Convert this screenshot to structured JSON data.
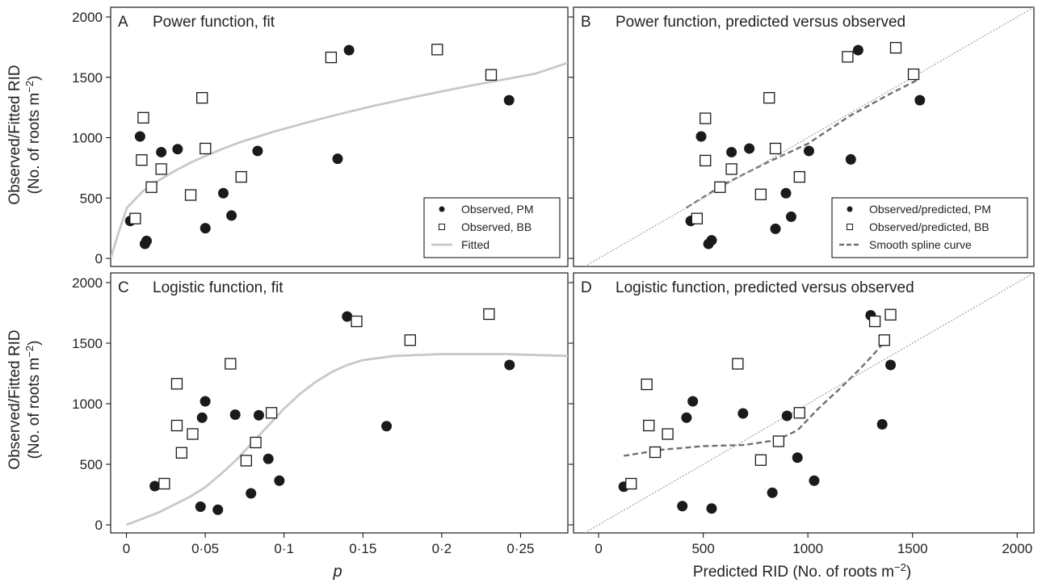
{
  "figure": {
    "y_axis_label_line1": "Observed/Fitted RID",
    "y_axis_label_line2": "(No. of roots m",
    "y_axis_label_exp": "−2",
    "y_axis_label_close": ")",
    "x_left_label": "p",
    "x_right_label": "Predicted RID (No. of roots m",
    "x_right_label_exp": "−2",
    "x_right_label_close": ")"
  },
  "colors": {
    "filled_marker": "#1a1a1a",
    "fitted_line": "#c8c8c8",
    "spline_line": "#707070",
    "identity_line": "#a8a8a8"
  },
  "chart_data": [
    {
      "panel": "A",
      "title": "Power function, fit",
      "type": "scatter",
      "xlim": [
        0,
        0.28
      ],
      "ylim": [
        0,
        2000
      ],
      "xticks": [
        {
          "v": 0,
          "label": "0"
        },
        {
          "v": 0.05,
          "label": "0·05"
        },
        {
          "v": 0.1,
          "label": "0·1"
        },
        {
          "v": 0.15,
          "label": "0·15"
        },
        {
          "v": 0.2,
          "label": "0·2"
        },
        {
          "v": 0.25,
          "label": "0·25"
        }
      ],
      "yticks": [
        {
          "v": 0,
          "label": "0"
        },
        {
          "v": 500,
          "label": "500"
        },
        {
          "v": 1000,
          "label": "1000"
        },
        {
          "v": 1500,
          "label": "1500"
        },
        {
          "v": 2000,
          "label": "2000"
        }
      ],
      "legend_position": "bottom-right",
      "series": [
        {
          "name": "Observed, PM",
          "marker": "filled-circle",
          "points": [
            [
              0.012,
              310
            ],
            [
              0.018,
              1010
            ],
            [
              0.021,
              120
            ],
            [
              0.022,
              145
            ],
            [
              0.031,
              880
            ],
            [
              0.041,
              905
            ],
            [
              0.058,
              250
            ],
            [
              0.069,
              540
            ],
            [
              0.074,
              355
            ],
            [
              0.09,
              890
            ],
            [
              0.139,
              825
            ],
            [
              0.146,
              1725
            ],
            [
              0.244,
              1310
            ]
          ]
        },
        {
          "name": "Observed, BB",
          "marker": "open-square",
          "points": [
            [
              0.015,
              330
            ],
            [
              0.019,
              815
            ],
            [
              0.02,
              1165
            ],
            [
              0.025,
              590
            ],
            [
              0.031,
              740
            ],
            [
              0.049,
              525
            ],
            [
              0.056,
              1330
            ],
            [
              0.058,
              910
            ],
            [
              0.08,
              675
            ],
            [
              0.135,
              1665
            ],
            [
              0.2,
              1730
            ],
            [
              0.233,
              1520
            ]
          ]
        },
        {
          "name": "Fitted",
          "marker": "line",
          "points": [
            [
              0,
              0
            ],
            [
              0.005,
              220
            ],
            [
              0.01,
              420
            ],
            [
              0.02,
              560
            ],
            [
              0.03,
              650
            ],
            [
              0.04,
              730
            ],
            [
              0.05,
              800
            ],
            [
              0.06,
              860
            ],
            [
              0.07,
              915
            ],
            [
              0.08,
              965
            ],
            [
              0.1,
              1050
            ],
            [
              0.12,
              1125
            ],
            [
              0.14,
              1195
            ],
            [
              0.16,
              1260
            ],
            [
              0.18,
              1320
            ],
            [
              0.2,
              1375
            ],
            [
              0.22,
              1430
            ],
            [
              0.24,
              1480
            ],
            [
              0.26,
              1530
            ],
            [
              0.28,
              1620
            ]
          ]
        }
      ]
    },
    {
      "panel": "B",
      "title": "Power function, predicted versus observed",
      "type": "scatter",
      "xlim": [
        -120,
        2080
      ],
      "ylim": [
        0,
        2000
      ],
      "xticks": [
        {
          "v": 0,
          "label": "0"
        },
        {
          "v": 500,
          "label": "500"
        },
        {
          "v": 1000,
          "label": "1000"
        },
        {
          "v": 1500,
          "label": "1500"
        },
        {
          "v": 2000,
          "label": "2000"
        }
      ],
      "yticks": [
        {
          "v": 0,
          "label": ""
        },
        {
          "v": 500,
          "label": ""
        },
        {
          "v": 1000,
          "label": ""
        },
        {
          "v": 1500,
          "label": ""
        },
        {
          "v": 2000,
          "label": ""
        }
      ],
      "legend_position": "bottom-right",
      "series": [
        {
          "name": "Observed/predicted, PM",
          "marker": "filled-circle",
          "points": [
            [
              440,
              310
            ],
            [
              490,
              1010
            ],
            [
              525,
              120
            ],
            [
              540,
              150
            ],
            [
              635,
              880
            ],
            [
              720,
              910
            ],
            [
              845,
              245
            ],
            [
              895,
              540
            ],
            [
              920,
              345
            ],
            [
              1005,
              890
            ],
            [
              1205,
              820
            ],
            [
              1240,
              1725
            ],
            [
              1535,
              1310
            ]
          ]
        },
        {
          "name": "Observed/predicted, BB",
          "marker": "open-square",
          "points": [
            [
              470,
              330
            ],
            [
              510,
              1160
            ],
            [
              510,
              810
            ],
            [
              580,
              590
            ],
            [
              635,
              740
            ],
            [
              775,
              530
            ],
            [
              815,
              1330
            ],
            [
              845,
              910
            ],
            [
              960,
              675
            ],
            [
              1190,
              1670
            ],
            [
              1420,
              1745
            ],
            [
              1505,
              1525
            ]
          ]
        },
        {
          "name": "Smooth spline curve",
          "marker": "dashed-line",
          "points": [
            [
              420,
              420
            ],
            [
              600,
              615
            ],
            [
              800,
              790
            ],
            [
              1000,
              950
            ],
            [
              1200,
              1180
            ],
            [
              1400,
              1370
            ],
            [
              1520,
              1475
            ]
          ]
        },
        {
          "name": "",
          "marker": "identity",
          "points": [
            [
              -120,
              -120
            ],
            [
              2080,
              2080
            ]
          ]
        }
      ]
    },
    {
      "panel": "C",
      "title": "Logistic function, fit",
      "type": "scatter",
      "xlim": [
        -0.01,
        0.28
      ],
      "ylim": [
        0,
        2000
      ],
      "xticks": [
        {
          "v": 0,
          "label": "0"
        },
        {
          "v": 0.05,
          "label": "0·05"
        },
        {
          "v": 0.1,
          "label": "0·1"
        },
        {
          "v": 0.15,
          "label": "0·15"
        },
        {
          "v": 0.2,
          "label": "0·2"
        },
        {
          "v": 0.25,
          "label": "0·25"
        }
      ],
      "yticks": [
        {
          "v": 0,
          "label": "0"
        },
        {
          "v": 500,
          "label": "500"
        },
        {
          "v": 1000,
          "label": "1000"
        },
        {
          "v": 1500,
          "label": "1500"
        },
        {
          "v": 2000,
          "label": "2000"
        }
      ],
      "series": [
        {
          "name": "Observed, PM",
          "marker": "filled-circle",
          "points": [
            [
              0.018,
              320
            ],
            [
              0.047,
              150
            ],
            [
              0.048,
              885
            ],
            [
              0.05,
              1020
            ],
            [
              0.058,
              125
            ],
            [
              0.069,
              910
            ],
            [
              0.079,
              260
            ],
            [
              0.084,
              905
            ],
            [
              0.09,
              545
            ],
            [
              0.097,
              365
            ],
            [
              0.14,
              1720
            ],
            [
              0.165,
              815
            ],
            [
              0.243,
              1320
            ]
          ]
        },
        {
          "name": "Observed, BB",
          "marker": "open-square",
          "points": [
            [
              0.024,
              340
            ],
            [
              0.032,
              1165
            ],
            [
              0.032,
              820
            ],
            [
              0.035,
              595
            ],
            [
              0.042,
              750
            ],
            [
              0.066,
              1330
            ],
            [
              0.076,
              530
            ],
            [
              0.082,
              680
            ],
            [
              0.092,
              925
            ],
            [
              0.146,
              1680
            ],
            [
              0.18,
              1525
            ],
            [
              0.23,
              1740
            ]
          ]
        },
        {
          "name": "Fitted",
          "marker": "line",
          "points": [
            [
              0,
              0
            ],
            [
              0.02,
              100
            ],
            [
              0.04,
              230
            ],
            [
              0.05,
              310
            ],
            [
              0.06,
              420
            ],
            [
              0.07,
              540
            ],
            [
              0.08,
              680
            ],
            [
              0.09,
              820
            ],
            [
              0.1,
              960
            ],
            [
              0.11,
              1080
            ],
            [
              0.12,
              1180
            ],
            [
              0.13,
              1260
            ],
            [
              0.14,
              1320
            ],
            [
              0.15,
              1360
            ],
            [
              0.17,
              1395
            ],
            [
              0.2,
              1410
            ],
            [
              0.24,
              1410
            ],
            [
              0.28,
              1395
            ]
          ]
        }
      ]
    },
    {
      "panel": "D",
      "title": "Logistic function, predicted versus observed",
      "type": "scatter",
      "xlim": [
        -120,
        2080
      ],
      "ylim": [
        0,
        2000
      ],
      "xticks": [
        {
          "v": 0,
          "label": "0"
        },
        {
          "v": 500,
          "label": "500"
        },
        {
          "v": 1000,
          "label": "1000"
        },
        {
          "v": 1500,
          "label": "1500"
        },
        {
          "v": 2000,
          "label": "2000"
        }
      ],
      "yticks": [
        {
          "v": 0,
          "label": ""
        },
        {
          "v": 500,
          "label": ""
        },
        {
          "v": 1000,
          "label": ""
        },
        {
          "v": 1500,
          "label": ""
        },
        {
          "v": 2000,
          "label": ""
        }
      ],
      "series": [
        {
          "name": "Observed/predicted, PM",
          "marker": "filled-circle",
          "points": [
            [
              120,
              315
            ],
            [
              400,
              155
            ],
            [
              420,
              885
            ],
            [
              450,
              1020
            ],
            [
              540,
              135
            ],
            [
              690,
              920
            ],
            [
              830,
              265
            ],
            [
              900,
              900
            ],
            [
              950,
              555
            ],
            [
              1030,
              365
            ],
            [
              1300,
              1730
            ],
            [
              1355,
              830
            ],
            [
              1395,
              1320
            ]
          ]
        },
        {
          "name": "Observed/predicted, BB",
          "marker": "open-square",
          "points": [
            [
              155,
              340
            ],
            [
              230,
              1160
            ],
            [
              240,
              820
            ],
            [
              270,
              600
            ],
            [
              330,
              750
            ],
            [
              665,
              1330
            ],
            [
              775,
              535
            ],
            [
              860,
              690
            ],
            [
              960,
              925
            ],
            [
              1320,
              1680
            ],
            [
              1365,
              1525
            ],
            [
              1395,
              1735
            ]
          ]
        },
        {
          "name": "Smooth spline curve",
          "marker": "dashed-line",
          "points": [
            [
              120,
              570
            ],
            [
              300,
              620
            ],
            [
              500,
              650
            ],
            [
              700,
              660
            ],
            [
              850,
              700
            ],
            [
              950,
              780
            ],
            [
              1050,
              960
            ],
            [
              1150,
              1120
            ],
            [
              1250,
              1290
            ],
            [
              1320,
              1420
            ],
            [
              1360,
              1500
            ]
          ]
        },
        {
          "name": "",
          "marker": "identity",
          "points": [
            [
              -120,
              -120
            ],
            [
              2080,
              2080
            ]
          ]
        }
      ]
    }
  ]
}
